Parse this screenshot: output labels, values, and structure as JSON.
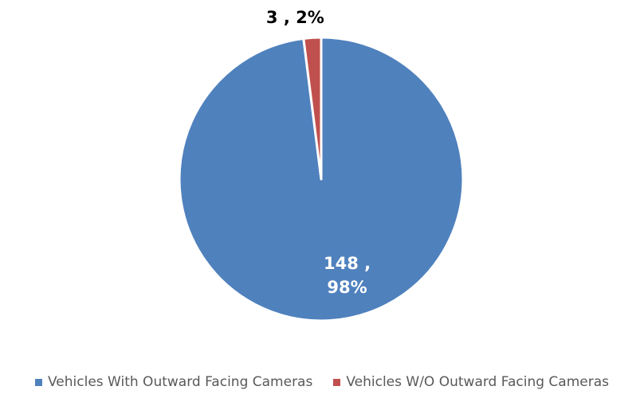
{
  "chart_data": {
    "type": "pie",
    "categories": [
      "Vehicles With Outward Facing Cameras",
      "Vehicles W/O Outward Facing Cameras"
    ],
    "values": [
      148,
      3
    ],
    "value_labels": [
      "148 , 98%",
      "3 , 2%"
    ],
    "colors": [
      "#4f81bd",
      "#c0504d"
    ],
    "legend": "bottom"
  }
}
